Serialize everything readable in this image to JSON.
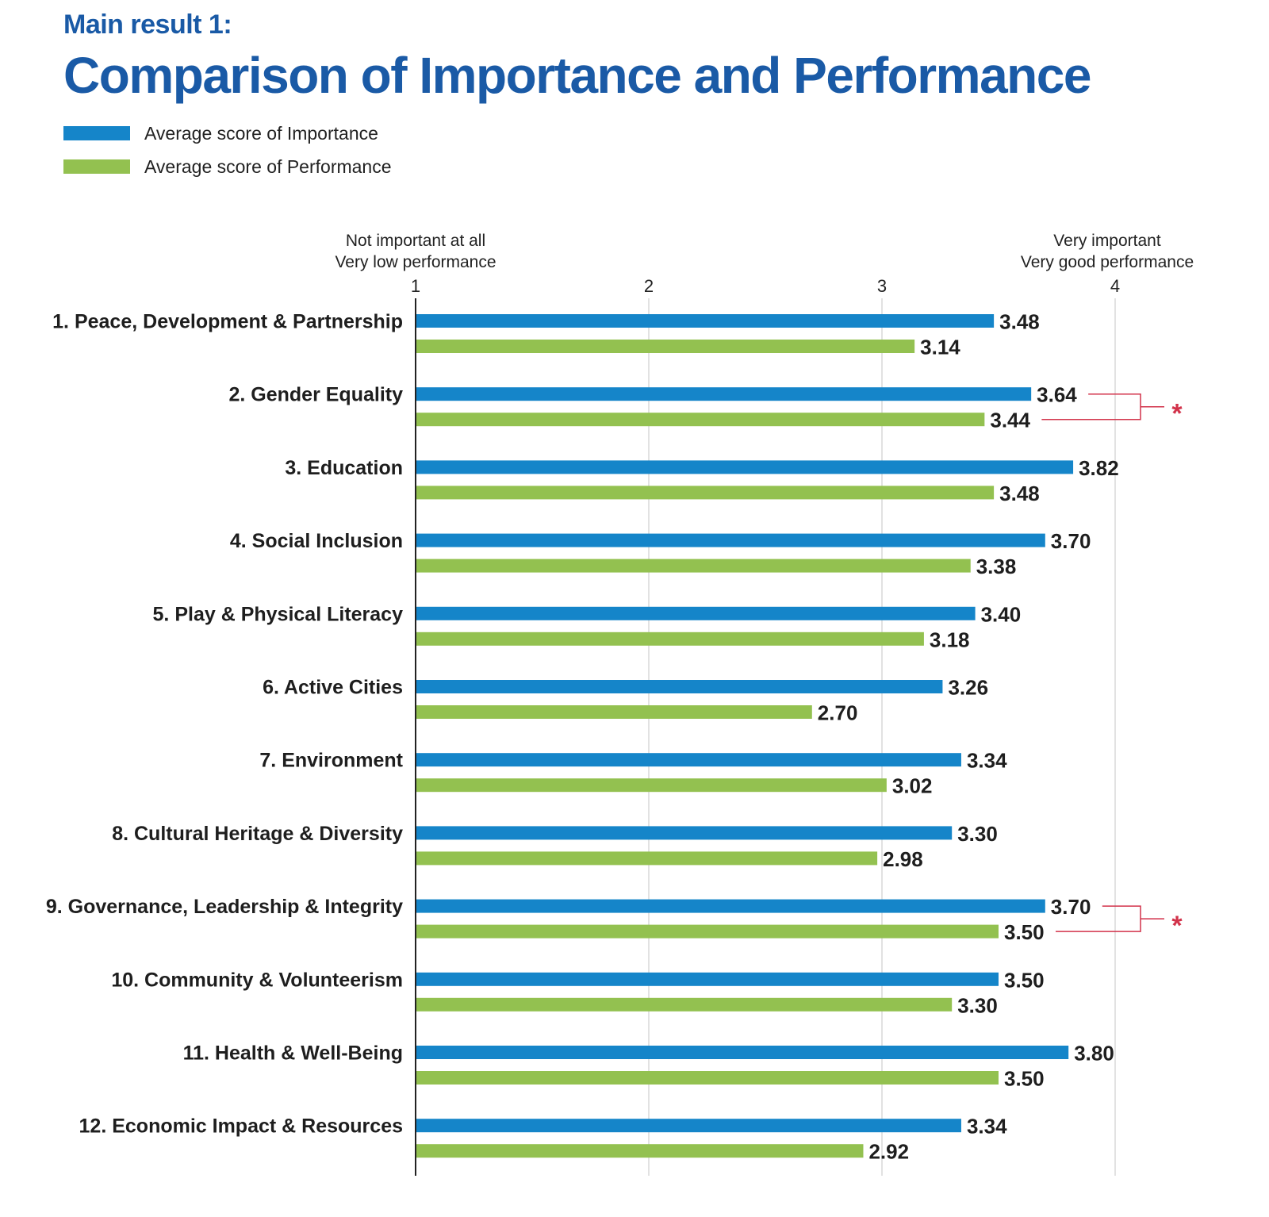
{
  "header": {
    "subtitle": "Main result 1:",
    "title": "Comparison of Importance and Performance"
  },
  "legend": [
    {
      "label": "Average score of Importance",
      "color": "#1585c9"
    },
    {
      "label": "Average score of Performance",
      "color": "#93c150"
    }
  ],
  "axis_annotations": {
    "left_line1": "Not important at all",
    "left_line2": "Very low performance",
    "right_line1": "Very important",
    "right_line2": "Very good performance"
  },
  "colors": {
    "importance": "#1585c9",
    "performance": "#93c150",
    "significance": "#d2324a",
    "grid": "#d9d9d9",
    "axis": "#222222"
  },
  "chart_data": {
    "type": "bar",
    "orientation": "horizontal",
    "title": "Comparison of Importance and Performance",
    "xlim": [
      1,
      4.5
    ],
    "x_ticks": [
      1,
      2,
      3,
      4
    ],
    "grid": true,
    "legend_position": "top-left",
    "categories": [
      "1. Peace, Development & Partnership",
      "2. Gender Equality",
      "3. Education",
      "4. Social Inclusion",
      "5. Play & Physical Literacy",
      "6. Active Cities",
      "7. Environment",
      "8. Cultural Heritage & Diversity",
      "9. Governance, Leadership & Integrity",
      "10. Community & Volunteerism",
      "11. Health & Well-Being",
      "12. Economic Impact & Resources"
    ],
    "series": [
      {
        "name": "Average score of Importance",
        "values": [
          3.48,
          3.64,
          3.82,
          3.7,
          3.4,
          3.26,
          3.34,
          3.3,
          3.7,
          3.5,
          3.8,
          3.34
        ],
        "labels": [
          "3.48",
          "3.64",
          "3.82",
          "3.70",
          "3.40",
          "3.26",
          "3.34",
          "3.30",
          "3.70",
          "3.50",
          "3.80",
          "3.34"
        ]
      },
      {
        "name": "Average score of Performance",
        "values": [
          3.14,
          3.44,
          3.48,
          3.38,
          3.18,
          2.7,
          3.02,
          2.98,
          3.5,
          3.3,
          3.5,
          2.92
        ],
        "labels": [
          "3.14",
          "3.44",
          "3.48",
          "3.38",
          "3.18",
          "2.70",
          "3.02",
          "2.98",
          "3.50",
          "3.30",
          "3.50",
          "2.92"
        ]
      }
    ],
    "significant_categories": [
      1,
      8
    ],
    "significance_mark": "*"
  }
}
